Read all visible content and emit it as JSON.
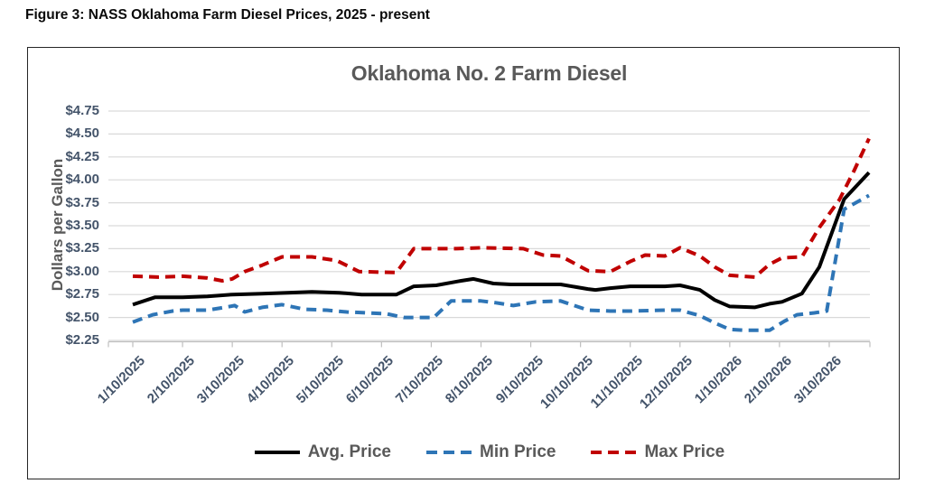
{
  "figure": {
    "caption": "Figure 3: NASS Oklahoma Farm Diesel Prices, 2025 - present"
  },
  "chart_data": {
    "type": "line",
    "title": "Oklahoma No. 2 Farm Diesel",
    "xlabel": "",
    "ylabel": "Dollars per Gallon",
    "ylim": [
      2.25,
      4.75
    ],
    "y_tick_step": 0.25,
    "y_tick_labels": [
      "$4.75",
      "$4.50",
      "$4.25",
      "$4.00",
      "$3.75",
      "$3.50",
      "$3.25",
      "$3.00",
      "$2.75",
      "$2.50",
      "$2.25"
    ],
    "x_tick_labels": [
      "1/10/2025",
      "2/10/2025",
      "3/10/2025",
      "4/10/2025",
      "5/10/2025",
      "6/10/2025",
      "7/10/2025",
      "8/10/2025",
      "9/10/2025",
      "10/10/2025",
      "11/10/2025",
      "12/10/2025",
      "1/10/2026",
      "2/10/2026",
      "3/10/2026"
    ],
    "x_unit": "months-since-1/10/2025 (tick i at x=i)",
    "x_range": [
      0,
      14.8
    ],
    "grid": "horizontal",
    "legend_position": "bottom",
    "style": {
      "grid_color": "#D9D9D9",
      "axis_color": "#BFBFBF",
      "tick_label_color": "#44546A",
      "text_color": "#595959"
    },
    "series": [
      {
        "name": "Avg. Price",
        "color": "#000000",
        "dash": "solid",
        "points": [
          [
            0,
            2.64
          ],
          [
            0.45,
            2.72
          ],
          [
            1.0,
            2.72
          ],
          [
            1.5,
            2.73
          ],
          [
            2.0,
            2.75
          ],
          [
            2.6,
            2.76
          ],
          [
            3.6,
            2.78
          ],
          [
            4.15,
            2.77
          ],
          [
            4.6,
            2.75
          ],
          [
            5.3,
            2.75
          ],
          [
            5.65,
            2.84
          ],
          [
            6.1,
            2.85
          ],
          [
            6.6,
            2.9
          ],
          [
            6.85,
            2.92
          ],
          [
            7.25,
            2.87
          ],
          [
            7.6,
            2.86
          ],
          [
            8.6,
            2.86
          ],
          [
            9.15,
            2.81
          ],
          [
            9.3,
            2.8
          ],
          [
            9.6,
            2.82
          ],
          [
            10.0,
            2.84
          ],
          [
            10.7,
            2.84
          ],
          [
            11.0,
            2.85
          ],
          [
            11.4,
            2.8
          ],
          [
            11.7,
            2.69
          ],
          [
            12.0,
            2.62
          ],
          [
            12.5,
            2.61
          ],
          [
            12.8,
            2.65
          ],
          [
            13.05,
            2.67
          ],
          [
            13.45,
            2.76
          ],
          [
            13.8,
            3.05
          ],
          [
            14.3,
            3.79
          ],
          [
            14.8,
            4.08
          ]
        ]
      },
      {
        "name": "Min Price",
        "color": "#2E75B6",
        "dash": "dashed",
        "points": [
          [
            0,
            2.45
          ],
          [
            0.4,
            2.53
          ],
          [
            0.8,
            2.57
          ],
          [
            1.0,
            2.58
          ],
          [
            1.5,
            2.58
          ],
          [
            1.85,
            2.61
          ],
          [
            2.05,
            2.63
          ],
          [
            2.25,
            2.56
          ],
          [
            2.6,
            2.61
          ],
          [
            3.0,
            2.64
          ],
          [
            3.45,
            2.59
          ],
          [
            3.9,
            2.58
          ],
          [
            4.3,
            2.56
          ],
          [
            4.7,
            2.55
          ],
          [
            5.1,
            2.54
          ],
          [
            5.45,
            2.5
          ],
          [
            6.05,
            2.5
          ],
          [
            6.4,
            2.68
          ],
          [
            7.0,
            2.68
          ],
          [
            7.3,
            2.66
          ],
          [
            7.65,
            2.63
          ],
          [
            8.1,
            2.67
          ],
          [
            8.6,
            2.68
          ],
          [
            9.15,
            2.58
          ],
          [
            9.6,
            2.57
          ],
          [
            10.0,
            2.57
          ],
          [
            10.7,
            2.58
          ],
          [
            11.0,
            2.58
          ],
          [
            11.4,
            2.52
          ],
          [
            11.7,
            2.44
          ],
          [
            12.0,
            2.37
          ],
          [
            12.3,
            2.36
          ],
          [
            12.8,
            2.36
          ],
          [
            13.1,
            2.46
          ],
          [
            13.35,
            2.53
          ],
          [
            13.7,
            2.55
          ],
          [
            13.95,
            2.57
          ],
          [
            14.3,
            3.68
          ],
          [
            14.8,
            3.83
          ]
        ]
      },
      {
        "name": "Max Price",
        "color": "#C00000",
        "dash": "dashed",
        "points": [
          [
            0,
            2.95
          ],
          [
            0.5,
            2.94
          ],
          [
            1.0,
            2.95
          ],
          [
            1.5,
            2.93
          ],
          [
            1.8,
            2.9
          ],
          [
            2.0,
            2.92
          ],
          [
            2.25,
            3.0
          ],
          [
            2.6,
            3.07
          ],
          [
            3.0,
            3.16
          ],
          [
            3.6,
            3.16
          ],
          [
            4.1,
            3.12
          ],
          [
            4.55,
            3.0
          ],
          [
            5.3,
            2.99
          ],
          [
            5.65,
            3.25
          ],
          [
            6.5,
            3.25
          ],
          [
            7.0,
            3.26
          ],
          [
            7.85,
            3.25
          ],
          [
            8.25,
            3.18
          ],
          [
            8.6,
            3.17
          ],
          [
            9.15,
            3.01
          ],
          [
            9.6,
            3.0
          ],
          [
            10.0,
            3.11
          ],
          [
            10.3,
            3.18
          ],
          [
            10.7,
            3.17
          ],
          [
            11.0,
            3.26
          ],
          [
            11.4,
            3.17
          ],
          [
            11.7,
            3.05
          ],
          [
            12.0,
            2.96
          ],
          [
            12.5,
            2.94
          ],
          [
            12.8,
            3.08
          ],
          [
            13.05,
            3.15
          ],
          [
            13.45,
            3.16
          ],
          [
            13.8,
            3.48
          ],
          [
            14.2,
            3.78
          ],
          [
            14.5,
            4.1
          ],
          [
            14.8,
            4.45
          ]
        ]
      }
    ]
  }
}
